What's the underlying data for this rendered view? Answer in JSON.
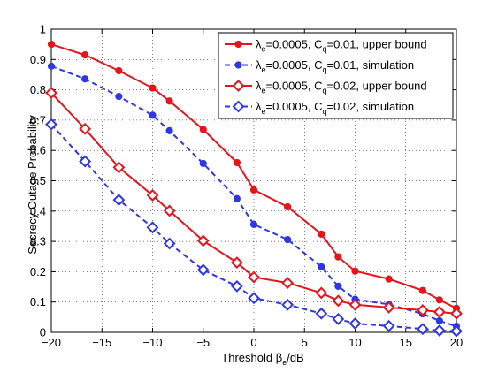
{
  "chart_data": {
    "type": "line",
    "xlabel": {
      "text": "Threshold β",
      "sub": "e",
      "suffix": "/dB"
    },
    "ylabel": "Secrecy Outage Probability",
    "xlim": [
      -20,
      20
    ],
    "ylim": [
      0,
      1
    ],
    "xticks": [
      -20,
      -15,
      -10,
      -5,
      0,
      5,
      10,
      15,
      20
    ],
    "yticks": [
      0,
      0.1,
      0.2,
      0.3,
      0.4,
      0.5,
      0.6,
      0.7,
      0.8,
      0.9,
      1
    ],
    "grid": true,
    "legend_position": "top-right",
    "colors": {
      "red": "#e8131b",
      "blue": "#2e36e6"
    },
    "series": [
      {
        "name": "λe=0.0005, Cq=0.01, upper bound",
        "legend": {
          "lambda": "λ",
          "lambda_sub": "e",
          "mid": "=0.0005, C",
          "c_sub": "q",
          "tail": "=0.01, upper bound"
        },
        "color": "red",
        "marker": "circle",
        "line": "solid",
        "x": [
          -20,
          -16.67,
          -13.33,
          -10,
          -8.33,
          -5,
          -1.67,
          0,
          3.33,
          6.67,
          8.33,
          10,
          13.33,
          16.67,
          18.33,
          20
        ],
        "y": [
          0.95,
          0.915,
          0.863,
          0.806,
          0.763,
          0.669,
          0.56,
          0.47,
          0.414,
          0.324,
          0.249,
          0.202,
          0.176,
          0.138,
          0.107,
          0.079
        ]
      },
      {
        "name": "λe=0.0005, Cq=0.01, simulation",
        "legend": {
          "lambda": "λ",
          "lambda_sub": "e",
          "mid": "=0.0005, C",
          "c_sub": "q",
          "tail": "=0.01, simulation"
        },
        "color": "blue",
        "marker": "circle",
        "line": "dashed",
        "x": [
          -20,
          -16.67,
          -13.33,
          -10,
          -8.33,
          -5,
          -1.67,
          0,
          3.33,
          6.67,
          8.33,
          10,
          13.33,
          16.67,
          18.33,
          20
        ],
        "y": [
          0.878,
          0.836,
          0.778,
          0.716,
          0.665,
          0.557,
          0.441,
          0.356,
          0.306,
          0.216,
          0.152,
          0.109,
          0.092,
          0.061,
          0.038,
          0.02
        ]
      },
      {
        "name": "λe=0.0005, Cq=0.02, upper bound",
        "legend": {
          "lambda": "λ",
          "lambda_sub": "e",
          "mid": "=0.0005, C",
          "c_sub": "q",
          "tail": "=0.02, upper bound"
        },
        "color": "red",
        "marker": "diamond",
        "line": "solid",
        "x": [
          -20,
          -16.67,
          -13.33,
          -10,
          -8.33,
          -5,
          -1.67,
          0,
          3.33,
          6.67,
          8.33,
          10,
          13.33,
          16.67,
          18.33,
          20
        ],
        "y": [
          0.79,
          0.671,
          0.544,
          0.452,
          0.401,
          0.302,
          0.23,
          0.182,
          0.163,
          0.13,
          0.104,
          0.091,
          0.082,
          0.073,
          0.067,
          0.062
        ]
      },
      {
        "name": "λe=0.0005, Cq=0.02, simulation",
        "legend": {
          "lambda": "λ",
          "lambda_sub": "e",
          "mid": "=0.0005, C",
          "c_sub": "q",
          "tail": "=0.02, simulation"
        },
        "color": "blue",
        "marker": "diamond",
        "line": "dashed",
        "x": [
          -20,
          -16.67,
          -13.33,
          -10,
          -8.33,
          -5,
          -1.67,
          0,
          3.33,
          6.67,
          8.33,
          10,
          13.33,
          16.67,
          18.33,
          20
        ],
        "y": [
          0.686,
          0.564,
          0.437,
          0.346,
          0.293,
          0.206,
          0.152,
          0.113,
          0.091,
          0.062,
          0.044,
          0.029,
          0.021,
          0.011,
          0.006,
          0.004
        ]
      }
    ]
  }
}
